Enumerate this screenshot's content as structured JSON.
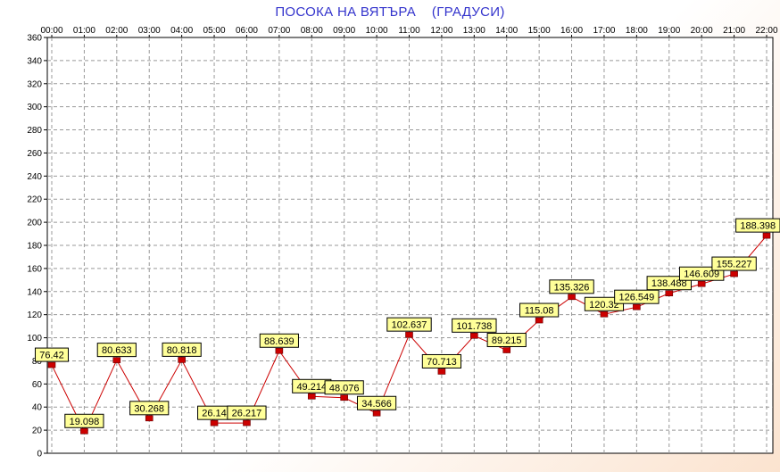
{
  "chart_data": {
    "type": "line",
    "title": "ПОСОКА НА ВЯТЪРА    (ГРАДУСИ)",
    "xlabel": "",
    "ylabel": "",
    "categories": [
      "00:00",
      "01:00",
      "02:00",
      "03:00",
      "04:00",
      "05:00",
      "06:00",
      "07:00",
      "08:00",
      "09:00",
      "10:00",
      "11:00",
      "12:00",
      "13:00",
      "14:00",
      "15:00",
      "16:00",
      "17:00",
      "18:00",
      "19:00",
      "20:00",
      "21:00",
      "22:00"
    ],
    "series": [
      {
        "values": [
          76.42,
          19.098,
          80.633,
          30.268,
          80.818,
          26.14,
          26.217,
          88.639,
          49.214,
          48.076,
          34.566,
          102.637,
          70.713,
          101.738,
          89.215,
          115.08,
          135.326,
          120.32,
          126.549,
          138.488,
          146.609,
          155.227,
          188.398
        ]
      }
    ],
    "data_labels": [
      "76.42",
      "19.098",
      "80.633",
      "30.268",
      "80.818",
      "26.14",
      "26.217",
      "88.639",
      "49.214",
      "48.076",
      "34.566",
      "102.637",
      "70.713",
      "101.738",
      "89.215",
      "115.08",
      "135.326",
      "120.32",
      "126.549",
      "138.488",
      "146.609",
      "155.227",
      "188.398"
    ],
    "ylim": [
      0,
      360
    ],
    "yticks": [
      "0",
      "20",
      "40",
      "60",
      "80",
      "100",
      "120",
      "140",
      "160",
      "180",
      "200",
      "220",
      "240",
      "260",
      "280",
      "300",
      "320",
      "340",
      "360"
    ],
    "grid": true,
    "x_axis_position": "top",
    "colors": {
      "title": "#3333cc",
      "line": "#cc0000",
      "marker": "#cc0000",
      "label_fill": "#ffff99",
      "grid": "#999999",
      "plot_background": "#ffffff"
    }
  }
}
